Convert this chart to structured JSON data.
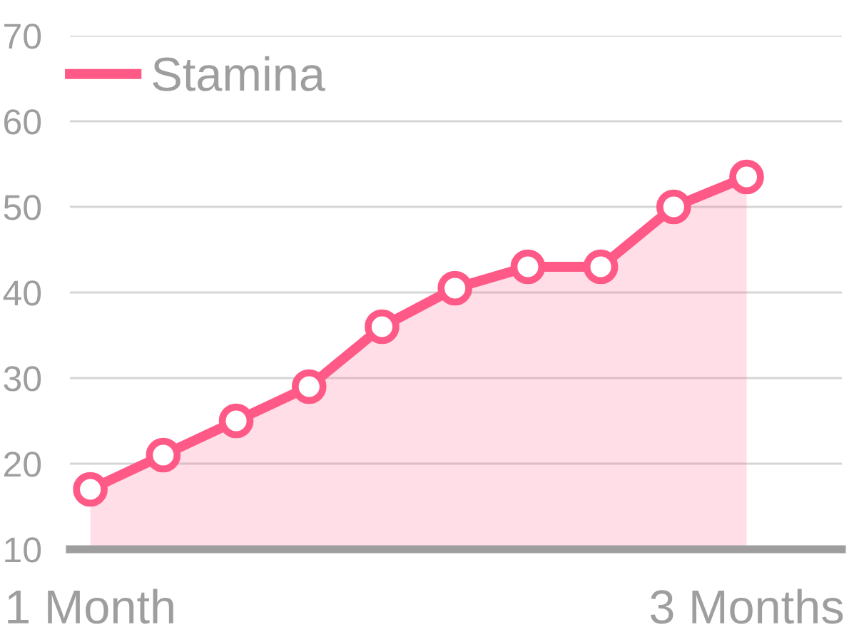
{
  "chart_data": {
    "type": "area",
    "categories": [
      "1 Month",
      null,
      null,
      null,
      null,
      null,
      null,
      null,
      null,
      "3 Months"
    ],
    "series": [
      {
        "name": "Stamina",
        "color": "#ff5a87",
        "values": [
          17,
          21,
          25,
          29,
          36,
          40.5,
          43,
          43,
          50,
          53.5
        ]
      }
    ],
    "ylim": [
      10,
      70
    ],
    "yticks": [
      10,
      20,
      30,
      40,
      50,
      60,
      70
    ],
    "grid": "y",
    "legend": "top left",
    "marker": "circle",
    "line_style": "solid"
  }
}
